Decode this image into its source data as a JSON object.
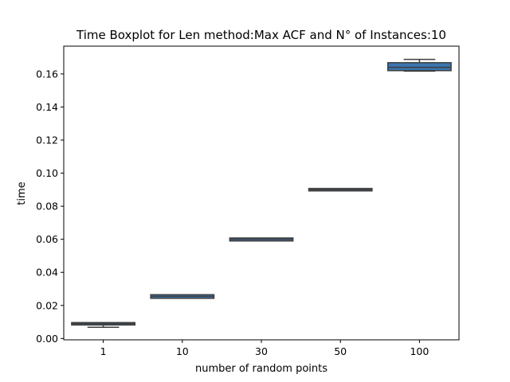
{
  "chart_data": {
    "type": "boxplot",
    "title": "Time Boxplot for Len method:Max ACF and N° of Instances:10",
    "xlabel": "number of random points",
    "ylabel": "time",
    "categories": [
      "1",
      "10",
      "30",
      "50",
      "100"
    ],
    "ylim": [
      -0.0008,
      0.1768
    ],
    "yticks": [
      0.0,
      0.02,
      0.04,
      0.06,
      0.08,
      0.1,
      0.12,
      0.14,
      0.16
    ],
    "ytick_labels": [
      "0.00",
      "0.02",
      "0.04",
      "0.06",
      "0.08",
      "0.10",
      "0.12",
      "0.14",
      "0.16"
    ],
    "grid": false,
    "series": [
      {
        "boxes": [
          {
            "category": "1",
            "whisker_low": 0.0068,
            "q1": 0.0083,
            "median": 0.009,
            "q3": 0.0095,
            "whisker_high": 0.0095
          },
          {
            "category": "10",
            "whisker_low": 0.0243,
            "q1": 0.0243,
            "median": 0.0255,
            "q3": 0.0265,
            "whisker_high": 0.0265
          },
          {
            "category": "30",
            "whisker_low": 0.059,
            "q1": 0.059,
            "median": 0.06,
            "q3": 0.0608,
            "whisker_high": 0.0608
          },
          {
            "category": "50",
            "whisker_low": 0.0895,
            "q1": 0.0895,
            "median": 0.09,
            "q3": 0.0905,
            "whisker_high": 0.0905
          },
          {
            "category": "100",
            "whisker_low": 0.1617,
            "q1": 0.162,
            "median": 0.164,
            "q3": 0.1668,
            "whisker_high": 0.1688
          }
        ]
      }
    ],
    "colors": {
      "box_fill": [
        "#3b75af",
        "#3b75af",
        "#3b75af",
        "#3b75af",
        "#3b75af"
      ],
      "line": "#3f3f3f",
      "axes": "#000000"
    }
  }
}
